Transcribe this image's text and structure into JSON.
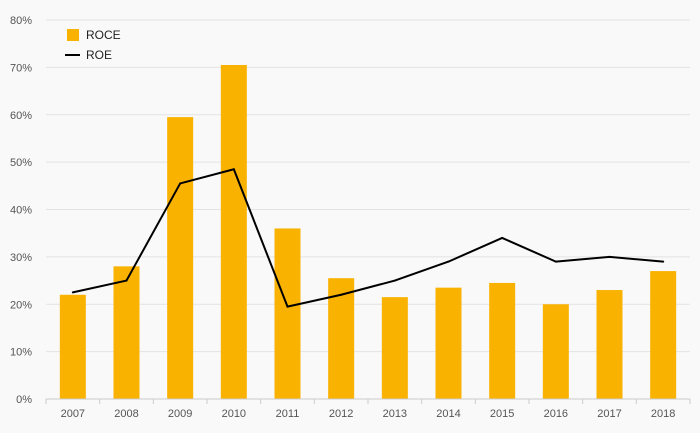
{
  "colors": {
    "bar": "#f9b200",
    "line": "#000000",
    "grid": "#e3e3e3",
    "axis": "#cccccc",
    "background": "#f9f9f9"
  },
  "chart_data": {
    "type": "bar",
    "categories": [
      "2007",
      "2008",
      "2009",
      "2010",
      "2011",
      "2012",
      "2013",
      "2014",
      "2015",
      "2016",
      "2017",
      "2018"
    ],
    "series": [
      {
        "name": "ROCE",
        "type": "bar",
        "values": [
          22,
          28,
          59.5,
          70.5,
          36,
          25.5,
          21.5,
          23.5,
          24.5,
          20,
          23,
          27
        ]
      },
      {
        "name": "ROE",
        "type": "line",
        "values": [
          22.5,
          25,
          45.5,
          48.5,
          19.5,
          22,
          25,
          29,
          34,
          29,
          30,
          29
        ]
      }
    ],
    "ylim": [
      0,
      80
    ],
    "yticks": [
      0,
      10,
      20,
      30,
      40,
      50,
      60,
      70,
      80
    ],
    "ytick_labels": [
      "0%",
      "10%",
      "20%",
      "30%",
      "40%",
      "50%",
      "60%",
      "70%",
      "80%"
    ],
    "title": "",
    "xlabel": "",
    "ylabel": "",
    "grid": true,
    "legend_position": "top-left"
  }
}
